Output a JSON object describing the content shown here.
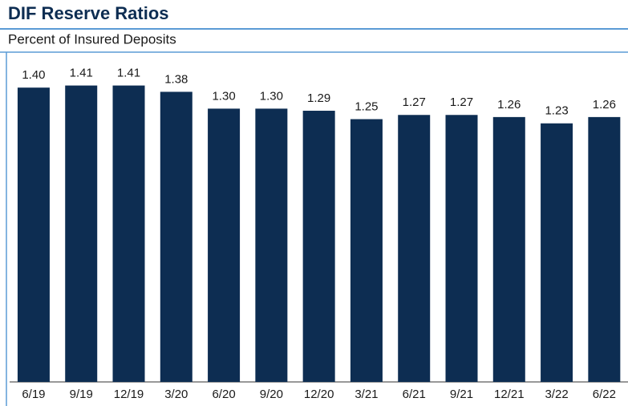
{
  "chart_data": {
    "type": "bar",
    "title": "DIF Reserve Ratios",
    "subtitle": "Percent of Insured Deposits",
    "categories": [
      "6/19",
      "9/19",
      "12/19",
      "3/20",
      "6/20",
      "9/20",
      "12/20",
      "3/21",
      "6/21",
      "9/21",
      "12/21",
      "3/22",
      "6/22"
    ],
    "values": [
      1.4,
      1.41,
      1.41,
      1.38,
      1.3,
      1.3,
      1.29,
      1.25,
      1.27,
      1.27,
      1.26,
      1.23,
      1.26
    ],
    "value_labels": [
      "1.40",
      "1.41",
      "1.41",
      "1.38",
      "1.30",
      "1.30",
      "1.29",
      "1.25",
      "1.27",
      "1.27",
      "1.26",
      "1.23",
      "1.26"
    ],
    "color": "#0d2d52",
    "ylim": [
      0,
      1.5
    ]
  }
}
